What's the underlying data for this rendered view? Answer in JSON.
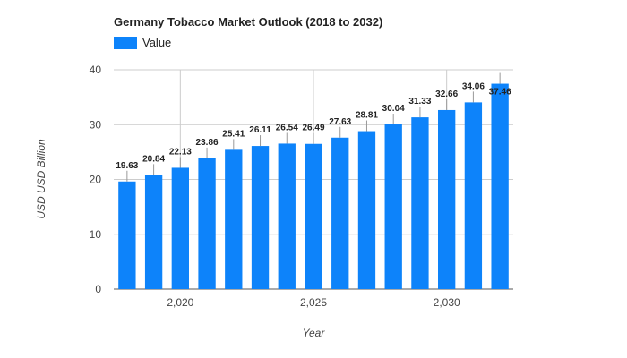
{
  "chart_data": {
    "type": "bar",
    "title": "Germany Tobacco Market Outlook (2018 to 2032)",
    "xlabel": "Year",
    "ylabel": "USD USD Billion",
    "x": [
      2018,
      2019,
      2020,
      2021,
      2022,
      2023,
      2024,
      2025,
      2026,
      2027,
      2028,
      2029,
      2030,
      2031,
      2032
    ],
    "series": [
      {
        "name": "Value",
        "values": [
          19.63,
          20.84,
          22.13,
          23.86,
          25.41,
          26.11,
          26.54,
          26.49,
          27.63,
          28.81,
          30.04,
          31.33,
          32.66,
          34.06,
          37.46
        ]
      }
    ],
    "ylim": [
      0,
      40
    ],
    "yticks": [
      0,
      10,
      20,
      30,
      40
    ],
    "xticks": [
      2020,
      2025,
      2030
    ],
    "xtick_labels": [
      "2,020",
      "2,025",
      "2,030"
    ],
    "grid": true,
    "legend_position": "top-left",
    "color": "#0d83fa"
  }
}
